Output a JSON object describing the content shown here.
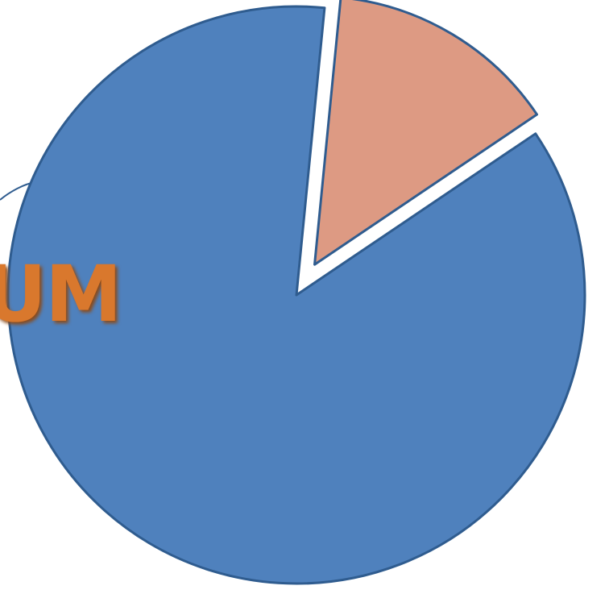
{
  "background_text": "UM",
  "colors": {
    "background_text": "#D9782D",
    "background_text_shadow": "#8a4a1a",
    "slice_main": "#4F81BD",
    "slice_main_stroke": "#2F5C8F",
    "slice_exploded": "#DD9A83",
    "slice_exploded_stroke": "#2F5C8F",
    "swirl": "#2F5C8F"
  },
  "chart_data": {
    "type": "pie",
    "title": "",
    "slices": [
      {
        "label": "",
        "value": 86,
        "color": "#4F81BD",
        "exploded": false
      },
      {
        "label": "",
        "value": 14,
        "color": "#DD9A83",
        "exploded": true
      }
    ],
    "start_angle_deg": -34,
    "legend": "none",
    "data_labels": false
  }
}
